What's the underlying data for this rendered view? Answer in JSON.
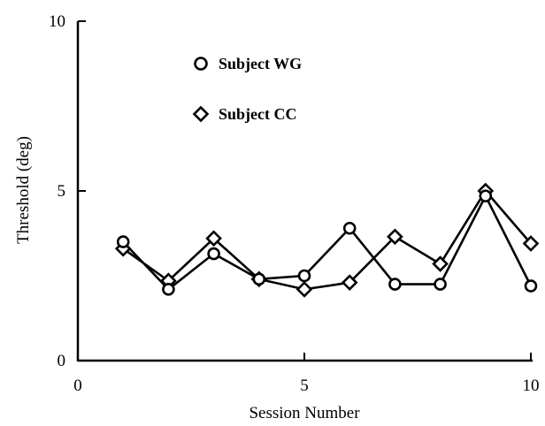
{
  "chart_data": {
    "type": "line",
    "xlabel": "Session Number",
    "ylabel": "Threshold (deg)",
    "xlim": [
      0,
      10
    ],
    "ylim": [
      0,
      10
    ],
    "xticks": [
      0,
      5,
      10
    ],
    "yticks": [
      0,
      5,
      10
    ],
    "xtick_labels": [
      "0",
      "5",
      "10"
    ],
    "ytick_labels": [
      "0",
      "5",
      "10"
    ],
    "grid": false,
    "legend_position": "top-center",
    "series": [
      {
        "name": "Subject WG",
        "marker": "circle",
        "x": [
          1,
          2,
          3,
          4,
          5,
          6,
          7,
          8,
          9,
          10
        ],
        "y": [
          3.5,
          2.1,
          3.15,
          2.4,
          2.5,
          3.9,
          2.25,
          2.25,
          4.85,
          2.2
        ]
      },
      {
        "name": "Subject CC",
        "marker": "diamond",
        "x": [
          1,
          2,
          3,
          4,
          5,
          6,
          7,
          8,
          9,
          10
        ],
        "y": [
          3.3,
          2.35,
          3.6,
          2.4,
          2.1,
          2.3,
          3.65,
          2.85,
          5.0,
          3.45
        ]
      }
    ]
  }
}
